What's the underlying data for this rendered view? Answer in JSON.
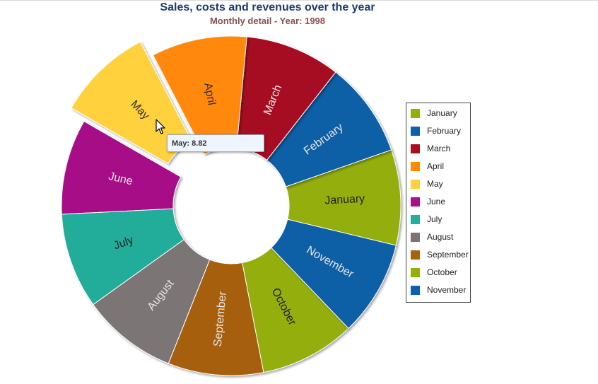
{
  "title": "Sales, costs and revenues over the year",
  "subtitle": "Monthly detail - Year: 1998",
  "tooltip": {
    "label": "May",
    "value": "8.82"
  },
  "chart_data": {
    "type": "pie",
    "title": "Sales, costs and revenues over the year",
    "subtitle": "Monthly detail - Year: 1998",
    "donut": true,
    "exploded_slice": "May",
    "legend_position": "right",
    "slices": [
      {
        "label": "January",
        "value": 8.82,
        "color": "#94ae0a",
        "text_color": "#222222"
      },
      {
        "label": "February",
        "value": 8.82,
        "color": "#115fa6",
        "text_color": "#e6e6e6"
      },
      {
        "label": "March",
        "value": 8.82,
        "color": "#a61120",
        "text_color": "#e6e6e6"
      },
      {
        "label": "April",
        "value": 8.82,
        "color": "#ff8809",
        "text_color": "#333333"
      },
      {
        "label": "May",
        "value": 8.82,
        "color": "#ffd13e",
        "text_color": "#333333"
      },
      {
        "label": "June",
        "value": 8.82,
        "color": "#a61187",
        "text_color": "#e6e6e6"
      },
      {
        "label": "July",
        "value": 8.82,
        "color": "#24ad9a",
        "text_color": "#222222"
      },
      {
        "label": "August",
        "value": 8.82,
        "color": "#7c7474",
        "text_color": "#e6e6e6"
      },
      {
        "label": "September",
        "value": 8.82,
        "color": "#a66111",
        "text_color": "#e6e6e6"
      },
      {
        "label": "October",
        "value": 8.82,
        "color": "#94ae0a",
        "text_color": "#222222"
      },
      {
        "label": "November",
        "value": 8.82,
        "color": "#115fa6",
        "text_color": "#e6e6e6"
      }
    ]
  }
}
